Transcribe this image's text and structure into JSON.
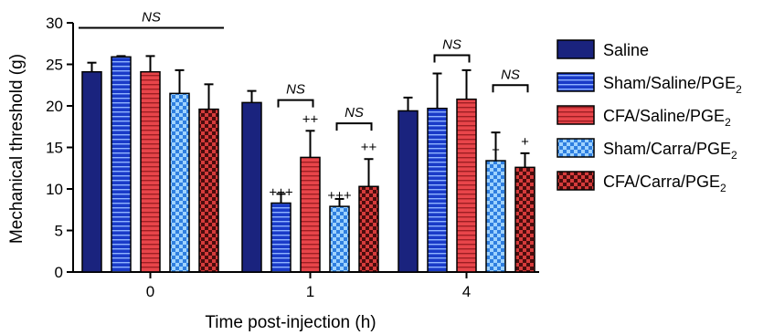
{
  "chart_data": {
    "type": "bar",
    "xlabel": "Time post-injection (h)",
    "ylabel": "Mechanical threshold (g)",
    "ylim": [
      0,
      30
    ],
    "yticks": [
      0,
      5,
      10,
      15,
      20,
      25,
      30
    ],
    "categories": [
      "0",
      "1",
      "4"
    ],
    "legend_position": "right",
    "series": [
      {
        "name": "Saline",
        "name_sub": "",
        "color": "#1a237e",
        "pattern": "solid",
        "values": [
          24.1,
          20.4,
          19.4
        ],
        "errors": [
          1.1,
          1.4,
          1.6
        ],
        "annotations": [
          "",
          "",
          ""
        ]
      },
      {
        "name": "Sham/Saline/PGE",
        "name_sub": "2",
        "color": "#1a3bc8",
        "pattern": "hlines-blue",
        "values": [
          25.9,
          8.3,
          19.7
        ],
        "errors": [
          0.1,
          1.1,
          4.2
        ],
        "annotations": [
          "",
          "+++",
          ""
        ]
      },
      {
        "name": "CFA/Saline/PGE",
        "name_sub": "2",
        "color": "#e8454a",
        "pattern": "hlines-red",
        "values": [
          24.1,
          13.8,
          20.8
        ],
        "errors": [
          1.9,
          3.2,
          3.5
        ],
        "annotations": [
          "",
          "++",
          ""
        ]
      },
      {
        "name": "Sham/Carra/PGE",
        "name_sub": "2",
        "color": "#2f7fe0",
        "pattern": "checker-blue",
        "values": [
          21.5,
          7.9,
          13.4
        ],
        "errors": [
          2.8,
          0.9,
          3.4
        ],
        "annotations": [
          "",
          "+++",
          "+"
        ]
      },
      {
        "name": "CFA/Carra/PGE",
        "name_sub": "2",
        "color": "#d63b3b",
        "pattern": "checker-red",
        "values": [
          19.6,
          10.3,
          12.6
        ],
        "errors": [
          3.0,
          3.3,
          1.7
        ],
        "annotations": [
          "",
          "++",
          "+"
        ]
      }
    ],
    "brackets": [
      {
        "category": 0,
        "from_series": 0,
        "to_series": 4,
        "label": "NS",
        "y": 29.4,
        "style": "line"
      },
      {
        "category": 1,
        "from_series": 1,
        "to_series": 2,
        "label": "NS",
        "y": 20.7,
        "style": "bracket"
      },
      {
        "category": 1,
        "from_series": 3,
        "to_series": 4,
        "label": "NS",
        "y": 17.9,
        "style": "bracket"
      },
      {
        "category": 2,
        "from_series": 1,
        "to_series": 2,
        "label": "NS",
        "y": 26.1,
        "style": "bracket"
      },
      {
        "category": 2,
        "from_series": 3,
        "to_series": 4,
        "label": "NS",
        "y": 22.5,
        "style": "bracket"
      }
    ]
  }
}
